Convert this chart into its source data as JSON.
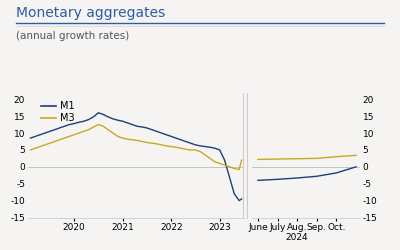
{
  "title": "Monetary aggregates",
  "subtitle": "(annual growth rates)",
  "legend": [
    "M1",
    "M3"
  ],
  "m1_color": "#1a3f7a",
  "m3_color": "#c8a825",
  "background_color": "#f5f4f2",
  "ylim": [
    -15,
    22
  ],
  "yticks": [
    -15,
    -10,
    -5,
    0,
    5,
    10,
    15,
    20
  ],
  "m1_left_x": [
    2019.1,
    2019.3,
    2019.5,
    2019.7,
    2019.9,
    2020.0,
    2020.1,
    2020.2,
    2020.3,
    2020.4,
    2020.5,
    2020.6,
    2020.7,
    2020.8,
    2020.9,
    2021.0,
    2021.1,
    2021.2,
    2021.3,
    2021.4,
    2021.5,
    2021.6,
    2021.7,
    2021.8,
    2021.9,
    2022.0,
    2022.1,
    2022.2,
    2022.3,
    2022.4,
    2022.5,
    2022.6,
    2022.7,
    2022.8,
    2022.9,
    2023.0,
    2023.1,
    2023.2,
    2023.3,
    2023.4,
    2023.45
  ],
  "m1_left_y": [
    8.5,
    9.5,
    10.5,
    11.5,
    12.5,
    12.8,
    13.2,
    13.5,
    14.0,
    14.8,
    16.0,
    15.5,
    14.8,
    14.2,
    13.8,
    13.5,
    13.0,
    12.5,
    12.0,
    11.8,
    11.5,
    11.0,
    10.5,
    10.0,
    9.5,
    9.0,
    8.5,
    8.0,
    7.5,
    7.0,
    6.5,
    6.2,
    6.0,
    5.8,
    5.5,
    5.0,
    2.0,
    -3.0,
    -8.0,
    -10.0,
    -9.5
  ],
  "m3_left_x": [
    2019.1,
    2019.3,
    2019.5,
    2019.7,
    2019.9,
    2020.0,
    2020.1,
    2020.2,
    2020.3,
    2020.4,
    2020.5,
    2020.6,
    2020.7,
    2020.8,
    2020.9,
    2021.0,
    2021.1,
    2021.2,
    2021.3,
    2021.4,
    2021.5,
    2021.6,
    2021.7,
    2021.8,
    2021.9,
    2022.0,
    2022.1,
    2022.2,
    2022.3,
    2022.4,
    2022.5,
    2022.6,
    2022.7,
    2022.8,
    2022.9,
    2023.0,
    2023.1,
    2023.2,
    2023.3,
    2023.4,
    2023.45
  ],
  "m3_left_y": [
    5.0,
    6.0,
    7.0,
    8.0,
    9.0,
    9.5,
    10.0,
    10.5,
    11.0,
    11.8,
    12.5,
    12.0,
    11.0,
    10.0,
    9.0,
    8.5,
    8.2,
    8.0,
    7.8,
    7.5,
    7.2,
    7.0,
    6.8,
    6.5,
    6.2,
    6.0,
    5.8,
    5.5,
    5.2,
    5.0,
    5.0,
    4.5,
    3.5,
    2.5,
    1.5,
    1.0,
    0.5,
    0.0,
    -0.5,
    -0.8,
    2.0
  ],
  "m1_right_x": [
    0,
    1,
    2,
    3,
    4,
    5
  ],
  "m1_right_y": [
    -4.0,
    -3.7,
    -3.3,
    -2.8,
    -1.8,
    0.0
  ],
  "m3_right_x": [
    0,
    1,
    2,
    3,
    4,
    5
  ],
  "m3_right_y": [
    2.2,
    2.3,
    2.4,
    2.5,
    3.0,
    3.4
  ],
  "right_xticklabels": [
    "June",
    "July",
    "Aug.\n2024",
    "Sep.",
    "Oct."
  ],
  "title_color": "#2a5ca8",
  "subtitle_color": "#555555",
  "tick_fontsize": 6.5,
  "legend_fontsize": 7,
  "title_fontsize": 10,
  "subtitle_fontsize": 7.5
}
